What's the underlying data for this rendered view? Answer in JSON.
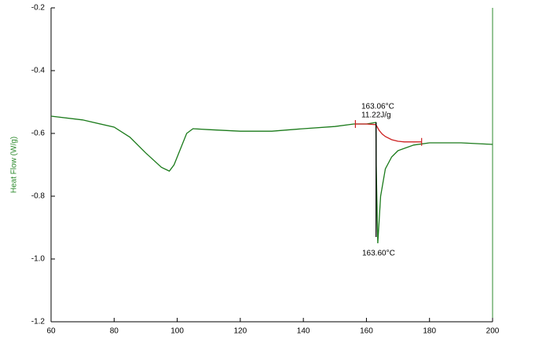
{
  "chart_data": {
    "type": "line",
    "y_label": "Heat Flow (W/g)",
    "xlim": [
      60,
      200
    ],
    "xticks": [
      60,
      80,
      100,
      120,
      140,
      160,
      180,
      200
    ],
    "ylim": [
      -1.2,
      -0.2
    ],
    "yticks": [
      -0.2,
      -0.4,
      -0.6,
      -0.8,
      {
        "value": -1.0,
        "label": "-1.0"
      },
      -1.2
    ],
    "axis_color": "#000000",
    "label_color": "#2e8b2e",
    "right_axis_color": "#2e8b2e",
    "series": [
      {
        "color": "#1a7a1a",
        "x": [
          60,
          70,
          80,
          85,
          90,
          95,
          97.5,
          99,
          101,
          103,
          105,
          110,
          120,
          130,
          140,
          150,
          156,
          160,
          163,
          163.1,
          163.6,
          164.5,
          166,
          168,
          170,
          175,
          180,
          190,
          200
        ],
        "values": [
          -0.545,
          -0.557,
          -0.58,
          -0.612,
          -0.662,
          -0.708,
          -0.72,
          -0.7,
          -0.65,
          -0.6,
          -0.585,
          -0.588,
          -0.593,
          -0.593,
          -0.585,
          -0.578,
          -0.57,
          -0.57,
          -0.565,
          -0.7,
          -0.95,
          -0.8,
          -0.713,
          -0.675,
          -0.655,
          -0.637,
          -0.63,
          -0.63,
          -0.635
        ]
      },
      {
        "color": "#cc2020",
        "x": [
          156.5,
          160,
          163,
          164,
          165,
          166,
          168,
          170,
          172,
          177.5
        ],
        "values": [
          -0.57,
          -0.57,
          -0.572,
          -0.59,
          -0.602,
          -0.61,
          -0.62,
          -0.625,
          -0.627,
          -0.627
        ]
      },
      {
        "color": "#000000",
        "x": [
          163.06,
          163.06
        ],
        "values": [
          -0.565,
          -0.93
        ]
      }
    ],
    "markers": {
      "color": "#cc2020",
      "x": [
        156.5,
        177.5
      ],
      "values": [
        -0.57,
        -0.627
      ]
    },
    "annotations": [
      "163.06°C",
      "11.22J/g",
      "163.60°C"
    ]
  }
}
